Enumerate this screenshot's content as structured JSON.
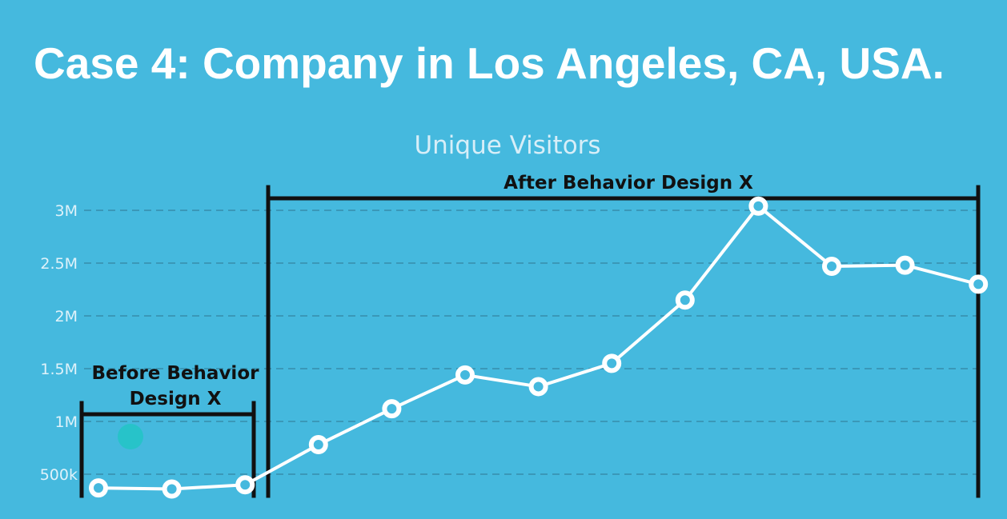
{
  "slide": {
    "title": "Case 4: Company in Los Angeles, CA, USA."
  },
  "colors": {
    "background": "#45b9de",
    "line": "#ffffff",
    "grid": "#3a98b8",
    "annotation": "#111111",
    "dot": "#27c3c9"
  },
  "chart_data": {
    "type": "line",
    "title": "Unique Visitors",
    "xlabel": "",
    "ylabel": "",
    "ylim": [
      300000,
      3100000
    ],
    "y_ticks": [
      {
        "value": 3000000,
        "label": "3M"
      },
      {
        "value": 2500000,
        "label": "2.5M"
      },
      {
        "value": 2000000,
        "label": "2M"
      },
      {
        "value": 1500000,
        "label": "1.5M"
      },
      {
        "value": 1000000,
        "label": "1M"
      },
      {
        "value": 500000,
        "label": "500k"
      }
    ],
    "grid": true,
    "legend": "none",
    "series": [
      {
        "values": [
          370000,
          360000,
          400000,
          780000,
          1120000,
          1440000,
          1330000,
          1550000,
          2150000,
          3040000,
          2470000,
          2480000,
          2300000
        ]
      }
    ],
    "annotations": [
      {
        "label": "Before Behavior Design X",
        "lines": [
          "Before Behavior",
          "Design X"
        ],
        "from_index": 0,
        "to_index": 2
      },
      {
        "label": "After Behavior Design X",
        "lines": [
          "After Behavior Design X"
        ],
        "from_index": 2,
        "to_index": 12
      }
    ]
  }
}
